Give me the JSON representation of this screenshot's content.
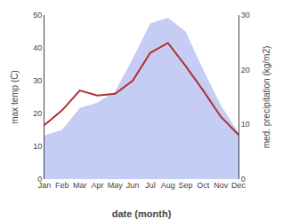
{
  "chart_data": {
    "type": "line",
    "categories": [
      "Jan",
      "Feb",
      "Mar",
      "Apr",
      "May",
      "Jun",
      "Jul",
      "Aug",
      "Sep",
      "Oct",
      "Nov",
      "Dec"
    ],
    "x_label": "date (month)",
    "y_label": "max temp (C)",
    "y2_label": "med. precipitation (kg/m2)",
    "series": [
      {
        "type": "area",
        "axis": "y2",
        "color": "#c5cdf5",
        "values": [
          8.0,
          9.0,
          13.0,
          14.0,
          16.0,
          22.0,
          28.5,
          29.5,
          27.0,
          20.0,
          13.5,
          8.5
        ]
      },
      {
        "type": "line",
        "color": "#b03030",
        "values": [
          16.5,
          21.0,
          27.0,
          25.5,
          26.0,
          30.0,
          38.5,
          41.5,
          34.5,
          27.0,
          19.0,
          13.5
        ]
      }
    ],
    "ylim": [
      0,
      50
    ],
    "yticks": [
      0,
      10,
      20,
      30,
      40,
      50
    ],
    "y2lim": [
      0,
      30
    ],
    "y2ticks": [
      0,
      10,
      20,
      30
    ],
    "grid": false
  }
}
